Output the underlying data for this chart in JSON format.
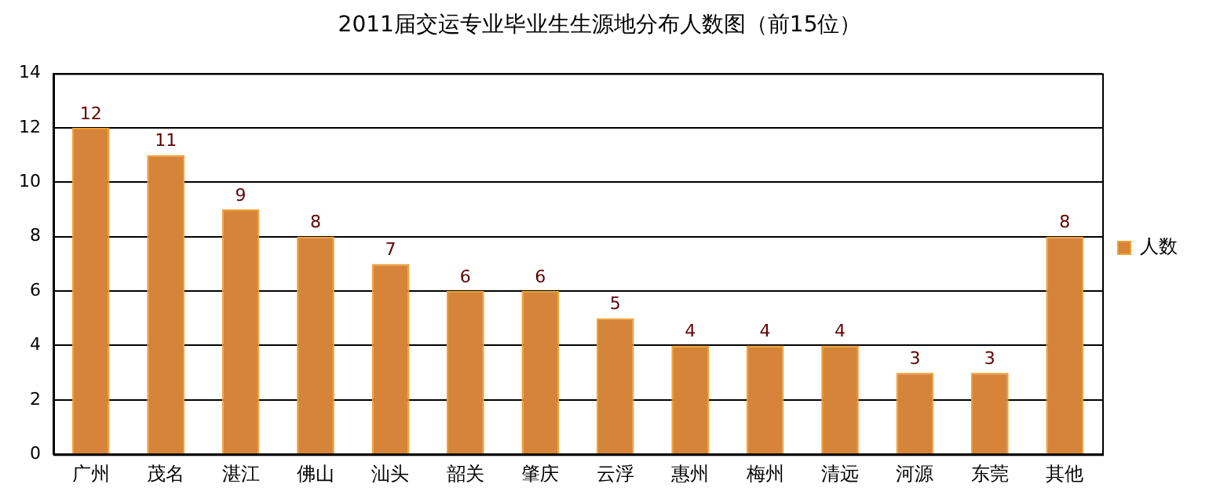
{
  "chart_data": {
    "type": "bar",
    "title": "2011届交运专业毕业生生源地分布人数图（前15位）",
    "categories": [
      "广州",
      "茂名",
      "湛江",
      "佛山",
      "汕头",
      "韶关",
      "肇庆",
      "云浮",
      "惠州",
      "梅州",
      "清远",
      "河源",
      "东莞",
      "其他"
    ],
    "series": [
      {
        "name": "人数",
        "color": "#d5843a",
        "values": [
          12,
          11,
          9,
          8,
          7,
          6,
          6,
          5,
          4,
          4,
          4,
          3,
          3,
          8
        ]
      }
    ],
    "ylim": [
      0,
      14
    ],
    "yticks": [
      0,
      2,
      4,
      6,
      8,
      10,
      12,
      14
    ],
    "grid": "y",
    "legend": "right",
    "data_labels": true
  }
}
